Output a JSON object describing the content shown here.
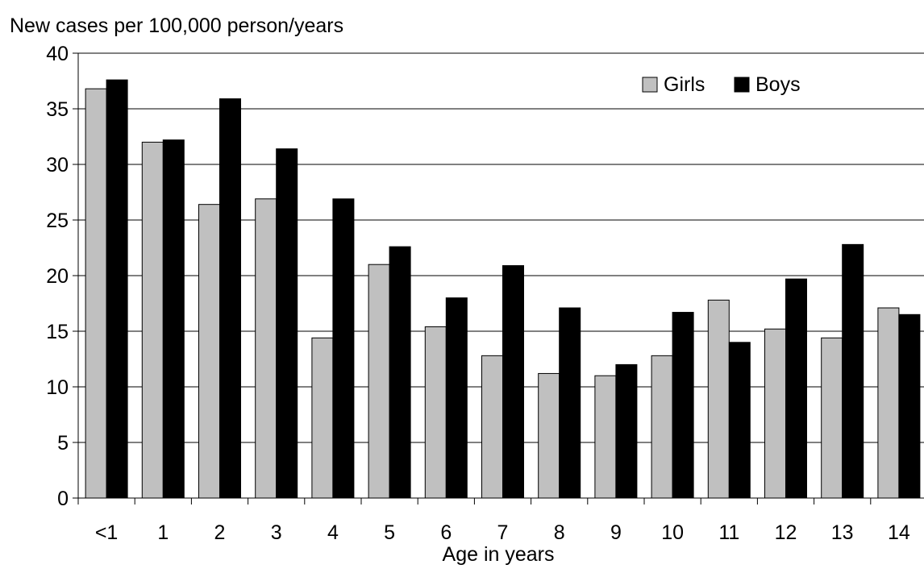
{
  "chart_data": {
    "type": "bar",
    "title": "",
    "ylabel": "New cases per 100,000 person/years",
    "xlabel": "Age in years",
    "categories": [
      "<1",
      "1",
      "2",
      "3",
      "4",
      "5",
      "6",
      "7",
      "8",
      "9",
      "10",
      "11",
      "12",
      "13",
      "14"
    ],
    "series": [
      {
        "name": "Girls",
        "color": "#c0c0c0",
        "values": [
          36.8,
          32.0,
          26.4,
          26.9,
          14.4,
          21.0,
          15.4,
          12.8,
          11.2,
          11.0,
          12.8,
          17.8,
          15.2,
          14.4,
          17.1
        ]
      },
      {
        "name": "Boys",
        "color": "#000000",
        "values": [
          37.6,
          32.2,
          35.9,
          31.4,
          26.9,
          22.6,
          18.0,
          20.9,
          17.1,
          12.0,
          16.7,
          14.0,
          19.7,
          22.8,
          16.5
        ]
      }
    ],
    "ylim": [
      0,
      40
    ],
    "yticks": [
      "0",
      "5",
      "10",
      "15",
      "20",
      "25",
      "30",
      "35",
      "40"
    ],
    "grid": true,
    "legend": "top-right"
  }
}
